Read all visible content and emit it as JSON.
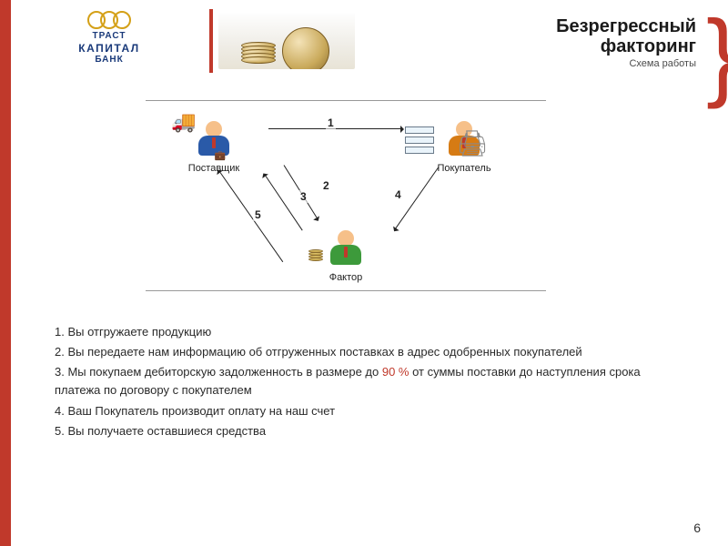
{
  "logo": {
    "line1": "ТРАСТ",
    "line2": "КАПИТАЛ",
    "line3": "БАНК",
    "ring_color": "#d4a017",
    "text_color": "#1a3a7a"
  },
  "title": {
    "main": "Безрегрессный факторинг",
    "l1": "Безрегрессный",
    "l2": "факторинг",
    "sub": "Схема работы",
    "main_color": "#1a1a1a",
    "sub_color": "#4a4a4a"
  },
  "accent_color": "#c0392b",
  "diagram": {
    "type": "flowchart",
    "border_color": "#999999",
    "nodes": {
      "supplier": {
        "label": "Поставщик",
        "body_color": "#2a5aa8"
      },
      "buyer": {
        "label": "Покупатель",
        "body_color": "#d67b14"
      },
      "factor": {
        "label": "Фактор",
        "body_color": "#3d9a3b"
      }
    },
    "edges": {
      "e1": {
        "from": "supplier",
        "to": "buyer",
        "label": "1"
      },
      "e2": {
        "from": "supplier",
        "to": "factor",
        "label": "2"
      },
      "e3": {
        "from": "factor",
        "to": "supplier",
        "label": "3"
      },
      "e4": {
        "from": "buyer",
        "to": "factor",
        "label": "4"
      },
      "e5": {
        "from": "factor",
        "to": "supplier",
        "label": "5"
      }
    },
    "arrow_color": "#222222",
    "label_fontsize": 12
  },
  "steps": {
    "fontsize": 13,
    "text_color": "#2a2a2a",
    "accent_color": "#c0392b",
    "green_color": "#6b8e23",
    "s1": "1. Вы отгружаете продукцию",
    "s2": "2. Вы передаете нам информацию об отгруженных поставках в адрес одобренных покупателей",
    "s3a": "3. Мы покупаем дебиторскую задолженность в размере до ",
    "s3pct": "90 %",
    "s3b": " от суммы поставки до наступления срока платежа по договору с покупателем",
    "s4": "4. Ваш Покупатель производит оплату на наш счет",
    "s5": "5. Вы получаете оставшиеся средства"
  },
  "page_number": "6"
}
